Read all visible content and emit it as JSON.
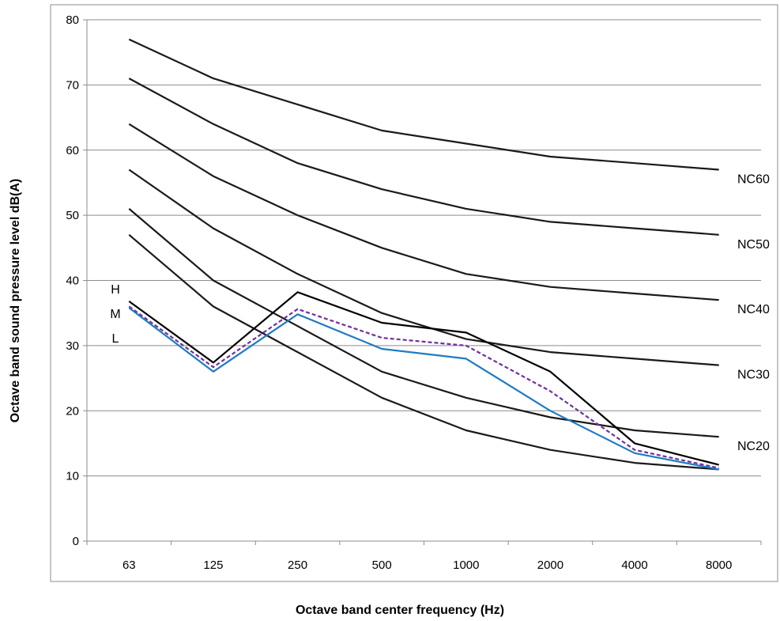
{
  "chart_data": {
    "type": "line",
    "xlabel": "Octave band center frequency (Hz)",
    "ylabel": "Octave band sound pressure level dB(A)",
    "categories": [
      "63",
      "125",
      "250",
      "500",
      "1000",
      "2000",
      "4000",
      "8000"
    ],
    "ylim": [
      0,
      80
    ],
    "yticks": [
      0,
      10,
      20,
      30,
      40,
      50,
      60,
      70,
      80
    ],
    "grid": "horizontal",
    "series": [
      {
        "name": "NC60",
        "values": [
          77,
          71,
          67,
          63,
          61,
          59,
          58,
          57
        ],
        "color": "#1a1a1a",
        "style": "solid"
      },
      {
        "name": "NC50",
        "values": [
          71,
          64,
          58,
          54,
          51,
          49,
          48,
          47
        ],
        "color": "#1a1a1a",
        "style": "solid"
      },
      {
        "name": "NC40",
        "values": [
          64,
          56,
          50,
          45,
          41,
          39,
          38,
          37
        ],
        "color": "#1a1a1a",
        "style": "solid"
      },
      {
        "name": "NC30",
        "values": [
          57,
          48,
          41,
          35,
          31,
          29,
          28,
          27
        ],
        "color": "#1a1a1a",
        "style": "solid"
      },
      {
        "name": "NC20",
        "values": [
          51,
          40,
          33,
          26,
          22,
          19,
          17,
          16
        ],
        "color": "#1a1a1a",
        "style": "solid"
      },
      {
        "name": "",
        "values": [
          47,
          36,
          29,
          22,
          17,
          14,
          12,
          11
        ],
        "color": "#1a1a1a",
        "style": "solid"
      },
      {
        "name": "H",
        "values": [
          36.8,
          27.4,
          38.2,
          33.5,
          32.0,
          26.0,
          15.0,
          11.7
        ],
        "color": "#000000",
        "style": "solid"
      },
      {
        "name": "M",
        "values": [
          36.0,
          26.7,
          35.6,
          31.2,
          30.0,
          23.0,
          14.0,
          11.2
        ],
        "color": "#7030a0",
        "style": "dashed"
      },
      {
        "name": "L",
        "values": [
          35.8,
          26.0,
          34.8,
          29.5,
          28.0,
          20.0,
          13.5,
          11.0
        ],
        "color": "#1f7bc1",
        "style": "solid"
      }
    ],
    "curve_labels": [
      "NC60",
      "NC50",
      "NC40",
      "NC30",
      "NC20"
    ],
    "condition_labels": [
      "H",
      "M",
      "L"
    ]
  }
}
